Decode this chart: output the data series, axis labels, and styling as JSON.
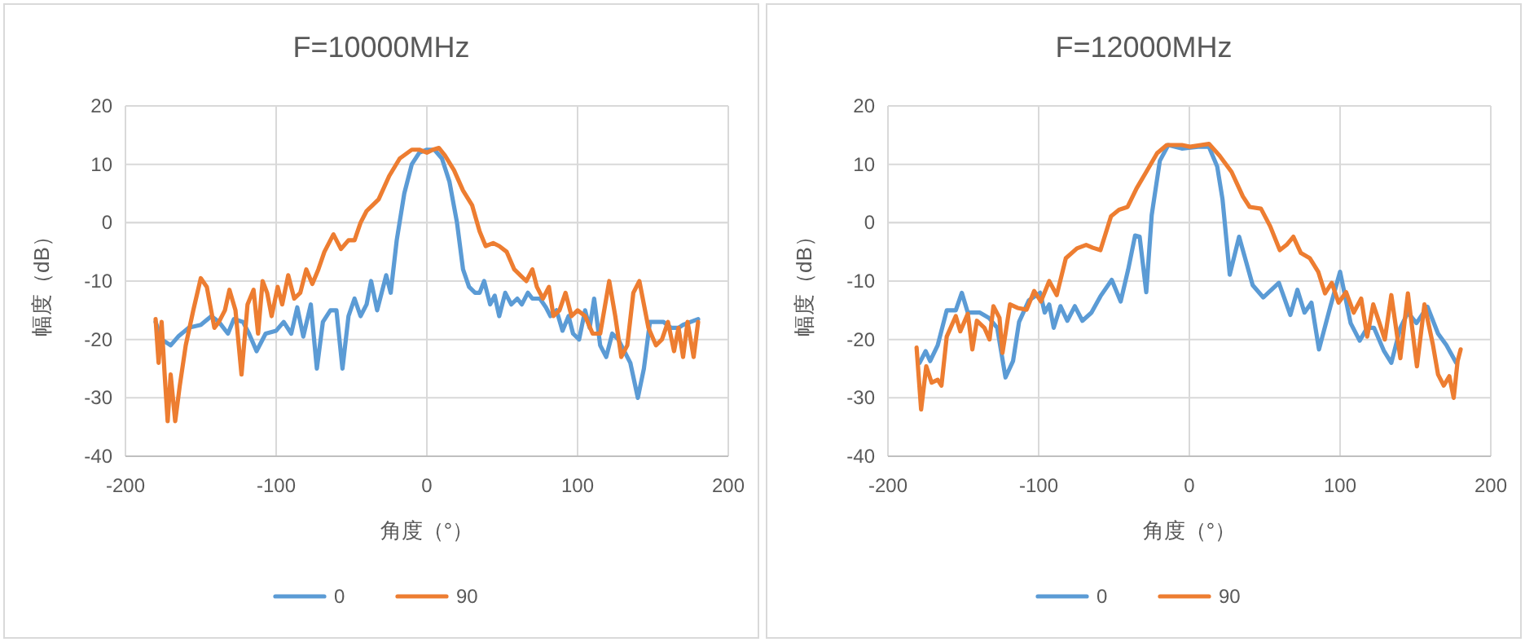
{
  "chart_data": [
    {
      "type": "line",
      "title": "F=10000MHz",
      "xlabel": "角度（°）",
      "ylabel": "幅度（dB）",
      "xlim": [
        -200,
        200
      ],
      "ylim": [
        -40,
        20
      ],
      "xticks": [
        -200,
        -100,
        0,
        100,
        200
      ],
      "yticks": [
        -40,
        -30,
        -20,
        -10,
        0,
        10,
        20
      ],
      "grid": true,
      "legend": "bottom",
      "series": [
        {
          "name": "0",
          "color": "#5b9bd5",
          "x": [
            -180,
            -176,
            -170,
            -165,
            -158,
            -150,
            -143,
            -138,
            -132,
            -128,
            -122,
            -118,
            -113,
            -107,
            -100,
            -95,
            -90,
            -86,
            -82,
            -77,
            -73,
            -69,
            -64,
            -60,
            -56,
            -52,
            -48,
            -44,
            -40,
            -37,
            -33,
            -30,
            -27,
            -24,
            -20,
            -15,
            -10,
            -5,
            0,
            5,
            10,
            15,
            20,
            24,
            28,
            32,
            35,
            38,
            42,
            45,
            48,
            52,
            56,
            60,
            63,
            67,
            70,
            75,
            79,
            82,
            86,
            90,
            94,
            97,
            101,
            105,
            108,
            111,
            115,
            119,
            123,
            127,
            131,
            135,
            140,
            144,
            148,
            152,
            157,
            162,
            167,
            170,
            175,
            180
          ],
          "values": [
            -17,
            -20,
            -21,
            -19.5,
            -18,
            -17.5,
            -16,
            -17,
            -19,
            -16.5,
            -17,
            -19,
            -22,
            -19,
            -18.5,
            -17,
            -19,
            -14.5,
            -19.5,
            -14,
            -25,
            -17,
            -15,
            -15,
            -25,
            -16,
            -13,
            -16,
            -14,
            -10,
            -15,
            -12,
            -9,
            -12,
            -3,
            5,
            10,
            12,
            12.5,
            12.5,
            11,
            7,
            0,
            -8,
            -11,
            -12,
            -12,
            -10,
            -14,
            -12.5,
            -16,
            -12,
            -14,
            -13,
            -14,
            -12,
            -13,
            -13,
            -14.5,
            -16,
            -15,
            -18.5,
            -16,
            -19,
            -20,
            -15,
            -18,
            -13,
            -21,
            -23,
            -19,
            -20,
            -22,
            -24,
            -30,
            -25,
            -17,
            -17,
            -17,
            -18,
            -18,
            -17.5,
            -17,
            -16.5
          ]
        },
        {
          "name": "90",
          "color": "#ed7d31",
          "x": [
            -180,
            -178,
            -176,
            -174,
            -172,
            -170,
            -167,
            -164,
            -160,
            -155,
            -150,
            -146,
            -141,
            -138,
            -134,
            -131,
            -127,
            -123,
            -119,
            -115,
            -112,
            -109,
            -106,
            -103,
            -99,
            -96,
            -92,
            -88,
            -84,
            -80,
            -76,
            -72,
            -68,
            -62,
            -57,
            -52,
            -48,
            -44,
            -40,
            -36,
            -32,
            -25,
            -18,
            -10,
            -5,
            0,
            4,
            8,
            12,
            18,
            24,
            30,
            35,
            39,
            44,
            48,
            53,
            58,
            62,
            66,
            70,
            73,
            77,
            81,
            84,
            88,
            92,
            96,
            100,
            105,
            110,
            115,
            121,
            125,
            129,
            133,
            137,
            141,
            147,
            152,
            156,
            160,
            164,
            167,
            170,
            173,
            177,
            180
          ],
          "values": [
            -16.5,
            -24,
            -17,
            -26,
            -34,
            -26,
            -34,
            -28,
            -21,
            -15,
            -9.5,
            -11,
            -18,
            -17,
            -15,
            -11.5,
            -15,
            -26,
            -14,
            -11.5,
            -19,
            -10,
            -12,
            -16,
            -11,
            -14,
            -9,
            -13,
            -12,
            -8,
            -10.5,
            -8,
            -5,
            -2,
            -4.5,
            -3,
            -3,
            0,
            2,
            3,
            4,
            8,
            11,
            12.5,
            12.5,
            12,
            12.5,
            12.8,
            11.5,
            9,
            5.5,
            3,
            -1.5,
            -4,
            -3.5,
            -4,
            -5,
            -8,
            -9,
            -10,
            -8,
            -11,
            -13,
            -11,
            -16,
            -15,
            -12,
            -16,
            -15,
            -16,
            -19,
            -19,
            -10,
            -16,
            -23,
            -21,
            -12,
            -10,
            -18,
            -21,
            -20,
            -17,
            -22,
            -18,
            -23,
            -17,
            -23,
            -17
          ]
        }
      ]
    },
    {
      "type": "line",
      "title": "F=12000MHz",
      "xlabel": "角度（°）",
      "ylabel": "幅度（dB）",
      "xlim": [
        -200,
        200
      ],
      "ylim": [
        -40,
        20
      ],
      "xticks": [
        -200,
        -100,
        0,
        100,
        200
      ],
      "yticks": [
        -40,
        -30,
        -20,
        -10,
        0,
        10,
        20
      ],
      "grid": true,
      "legend": "bottom",
      "series": [
        {
          "name": "0",
          "color": "#5b9bd5",
          "x": [
            -179,
            -175,
            -172,
            -167,
            -161,
            -155,
            -151,
            -147,
            -139,
            -133,
            -127.5,
            -122,
            -117,
            -113,
            -106.5,
            -99,
            -96,
            -93,
            -90,
            -85.5,
            -81,
            -76,
            -71,
            -65,
            -59,
            -51.5,
            -45.6,
            -40.6,
            -36,
            -33,
            -28.6,
            -25,
            -19.6,
            -14,
            -5,
            5.8,
            13,
            18.5,
            22,
            26.8,
            33,
            42,
            49,
            59.4,
            67,
            71.7,
            76.4,
            81,
            86,
            93.5,
            100,
            107,
            113,
            118,
            122.5,
            129,
            134,
            140,
            145,
            150.7,
            158,
            165,
            170.6,
            177
          ],
          "values": [
            -24,
            -22,
            -23.7,
            -21,
            -15,
            -15,
            -12,
            -15.4,
            -15.4,
            -16.3,
            -18,
            -26.5,
            -23.7,
            -17,
            -13.3,
            -12,
            -15.4,
            -14,
            -18,
            -14.3,
            -16.8,
            -14.3,
            -16.8,
            -15.4,
            -12.6,
            -9.8,
            -13.5,
            -8,
            -2.2,
            -2.4,
            -11.9,
            1.3,
            10.6,
            13.3,
            12.7,
            13,
            13,
            9.6,
            4,
            -8.9,
            -2.4,
            -10.7,
            -12.8,
            -10.3,
            -15.8,
            -11.5,
            -15.4,
            -13.7,
            -21.7,
            -14.4,
            -8.4,
            -17.2,
            -20.2,
            -18,
            -18,
            -21.9,
            -24,
            -18,
            -15.4,
            -17.2,
            -14.4,
            -19,
            -21,
            -24
          ]
        },
        {
          "name": "90",
          "color": "#ed7d31",
          "x": [
            -181,
            -178,
            -174.6,
            -171,
            -167,
            -164.5,
            -161,
            -155,
            -152,
            -147,
            -144,
            -141,
            -136,
            -132.6,
            -130,
            -126,
            -124,
            -119,
            -114,
            -108,
            -103,
            -98.5,
            -93,
            -88,
            -82,
            -74.6,
            -68.5,
            -64,
            -59,
            -52,
            -46.7,
            -41,
            -35,
            -28.6,
            -21.4,
            -15,
            -5,
            0.4,
            13,
            20,
            28,
            35.5,
            40,
            47.5,
            53.6,
            60,
            64.5,
            69,
            74,
            80,
            85.5,
            90,
            94.5,
            99,
            104,
            109,
            114,
            118,
            122,
            125,
            129.7,
            134,
            140,
            145,
            151,
            156,
            161.6,
            165,
            168.8,
            172.5,
            175.4,
            178,
            180
          ],
          "values": [
            -21.4,
            -32,
            -24.6,
            -27.4,
            -26.9,
            -27.9,
            -19.5,
            -16,
            -18.6,
            -15.6,
            -21.7,
            -16.8,
            -18,
            -20,
            -14.3,
            -16.3,
            -22.3,
            -14,
            -14.6,
            -14.9,
            -11.7,
            -13.5,
            -10,
            -12.4,
            -6.1,
            -4.4,
            -3.8,
            -4.3,
            -4.7,
            1.1,
            2.2,
            2.7,
            5.9,
            8.7,
            11.9,
            13.3,
            13.3,
            13,
            13.5,
            11.5,
            8.7,
            4.5,
            2.7,
            2.4,
            -0.6,
            -4.7,
            -3.8,
            -2.4,
            -5.2,
            -6.1,
            -8.4,
            -12.1,
            -10.3,
            -13.7,
            -11.9,
            -15.4,
            -13,
            -19.5,
            -14,
            -16.3,
            -20,
            -12.4,
            -23.2,
            -12.1,
            -24.6,
            -14,
            -20.9,
            -26,
            -27.9,
            -26.3,
            -30,
            -23.7,
            -21.7
          ]
        }
      ]
    }
  ]
}
